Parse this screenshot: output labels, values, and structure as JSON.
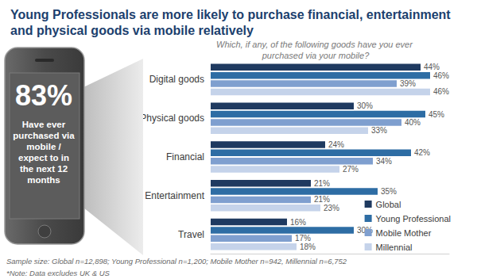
{
  "chart_data": {
    "type": "bar",
    "title": "Young Professionals are more likely to purchase financial, entertainment and physical goods via mobile relatively",
    "subtitle": "Which, if any, of the following goods have you ever purchased via your mobile?",
    "categories": [
      "Digital goods",
      "Physical goods",
      "Financial",
      "Entertainment",
      "Travel"
    ],
    "series": [
      {
        "name": "Global",
        "color": "#1f3a60",
        "values": [
          44,
          30,
          24,
          21,
          16
        ],
        "value_labels": [
          "44%",
          "30%",
          "24%",
          "21%",
          "16%"
        ]
      },
      {
        "name": "Young Professional",
        "color": "#2e6da4",
        "values": [
          46,
          45,
          42,
          35,
          30
        ],
        "value_labels": [
          "46%",
          "45%",
          "42%",
          "35%",
          "30%"
        ]
      },
      {
        "name": "Mobile Mother",
        "color": "#7f9fcf",
        "values": [
          39,
          40,
          34,
          21,
          17
        ],
        "value_labels": [
          "39%",
          "40%",
          "34%",
          "21%",
          "17%"
        ]
      },
      {
        "name": "Millennial",
        "color": "#c5d3ea",
        "values": [
          46,
          33,
          27,
          23,
          18
        ],
        "value_labels": [
          "46%",
          "33%",
          "27%",
          "23%",
          "18%"
        ]
      }
    ],
    "orientation": "horizontal",
    "data_labels": true,
    "legend": "lower right",
    "tick_labels": "y",
    "grid": false,
    "xlim": [
      0,
      50
    ],
    "annotations": [
      "83%",
      "Have ever purchased via mobile / expect to in the next 12 months",
      "Sample size: Global n=12,898; Young Professional n=1,200; Mobile Mother n=942, Millennial n=6,752",
      "*Note: Data excludes UK & US"
    ]
  }
}
